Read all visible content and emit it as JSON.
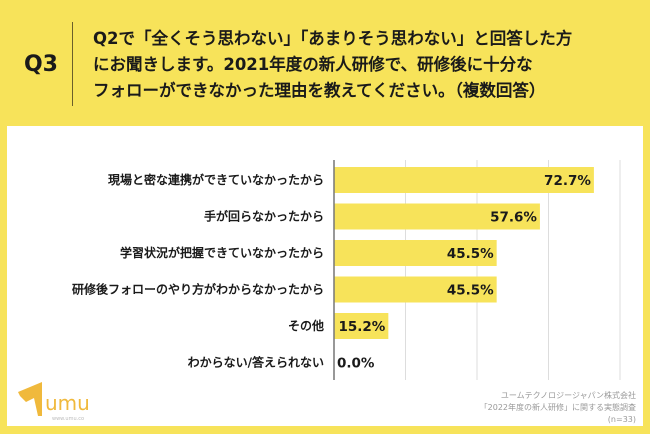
{
  "header": {
    "question_no": "Q3",
    "question_lines": [
      "Q2で「全くそう思わない」「あまりそう思わない」と回答した方",
      "にお聞きします。2021年度の新人研修で、研修後に十分な",
      "フォローができなかった理由を教えてください。（複数回答）"
    ]
  },
  "colors": {
    "background": "#f7e35a",
    "bar": "#f7e35a",
    "logo": "#f0b93c"
  },
  "chart_data": {
    "type": "bar",
    "orientation": "horizontal",
    "categories": [
      "現場と密な連携ができていなかったから",
      "手が回らなかったから",
      "学習状況が把握できていなかったから",
      "研修後フォローのやり方がわからなかったから",
      "その他",
      "わからない/答えられない"
    ],
    "values": [
      72.7,
      57.6,
      45.5,
      45.5,
      15.2,
      0.0
    ],
    "labels": [
      "72.7%",
      "57.6%",
      "45.5%",
      "45.5%",
      "15.2%",
      "0.0%"
    ],
    "xlim": [
      0,
      80
    ],
    "grid": true,
    "gridlines": [
      20,
      40,
      60,
      80
    ]
  },
  "footer": {
    "logo_text": "umu",
    "logo_url_text": "www.umu.co",
    "source_lines": [
      "ユームテクノロジージャパン株式会社",
      "「2022年度の新人研修」に関する実態調査",
      "(n=33)"
    ]
  }
}
